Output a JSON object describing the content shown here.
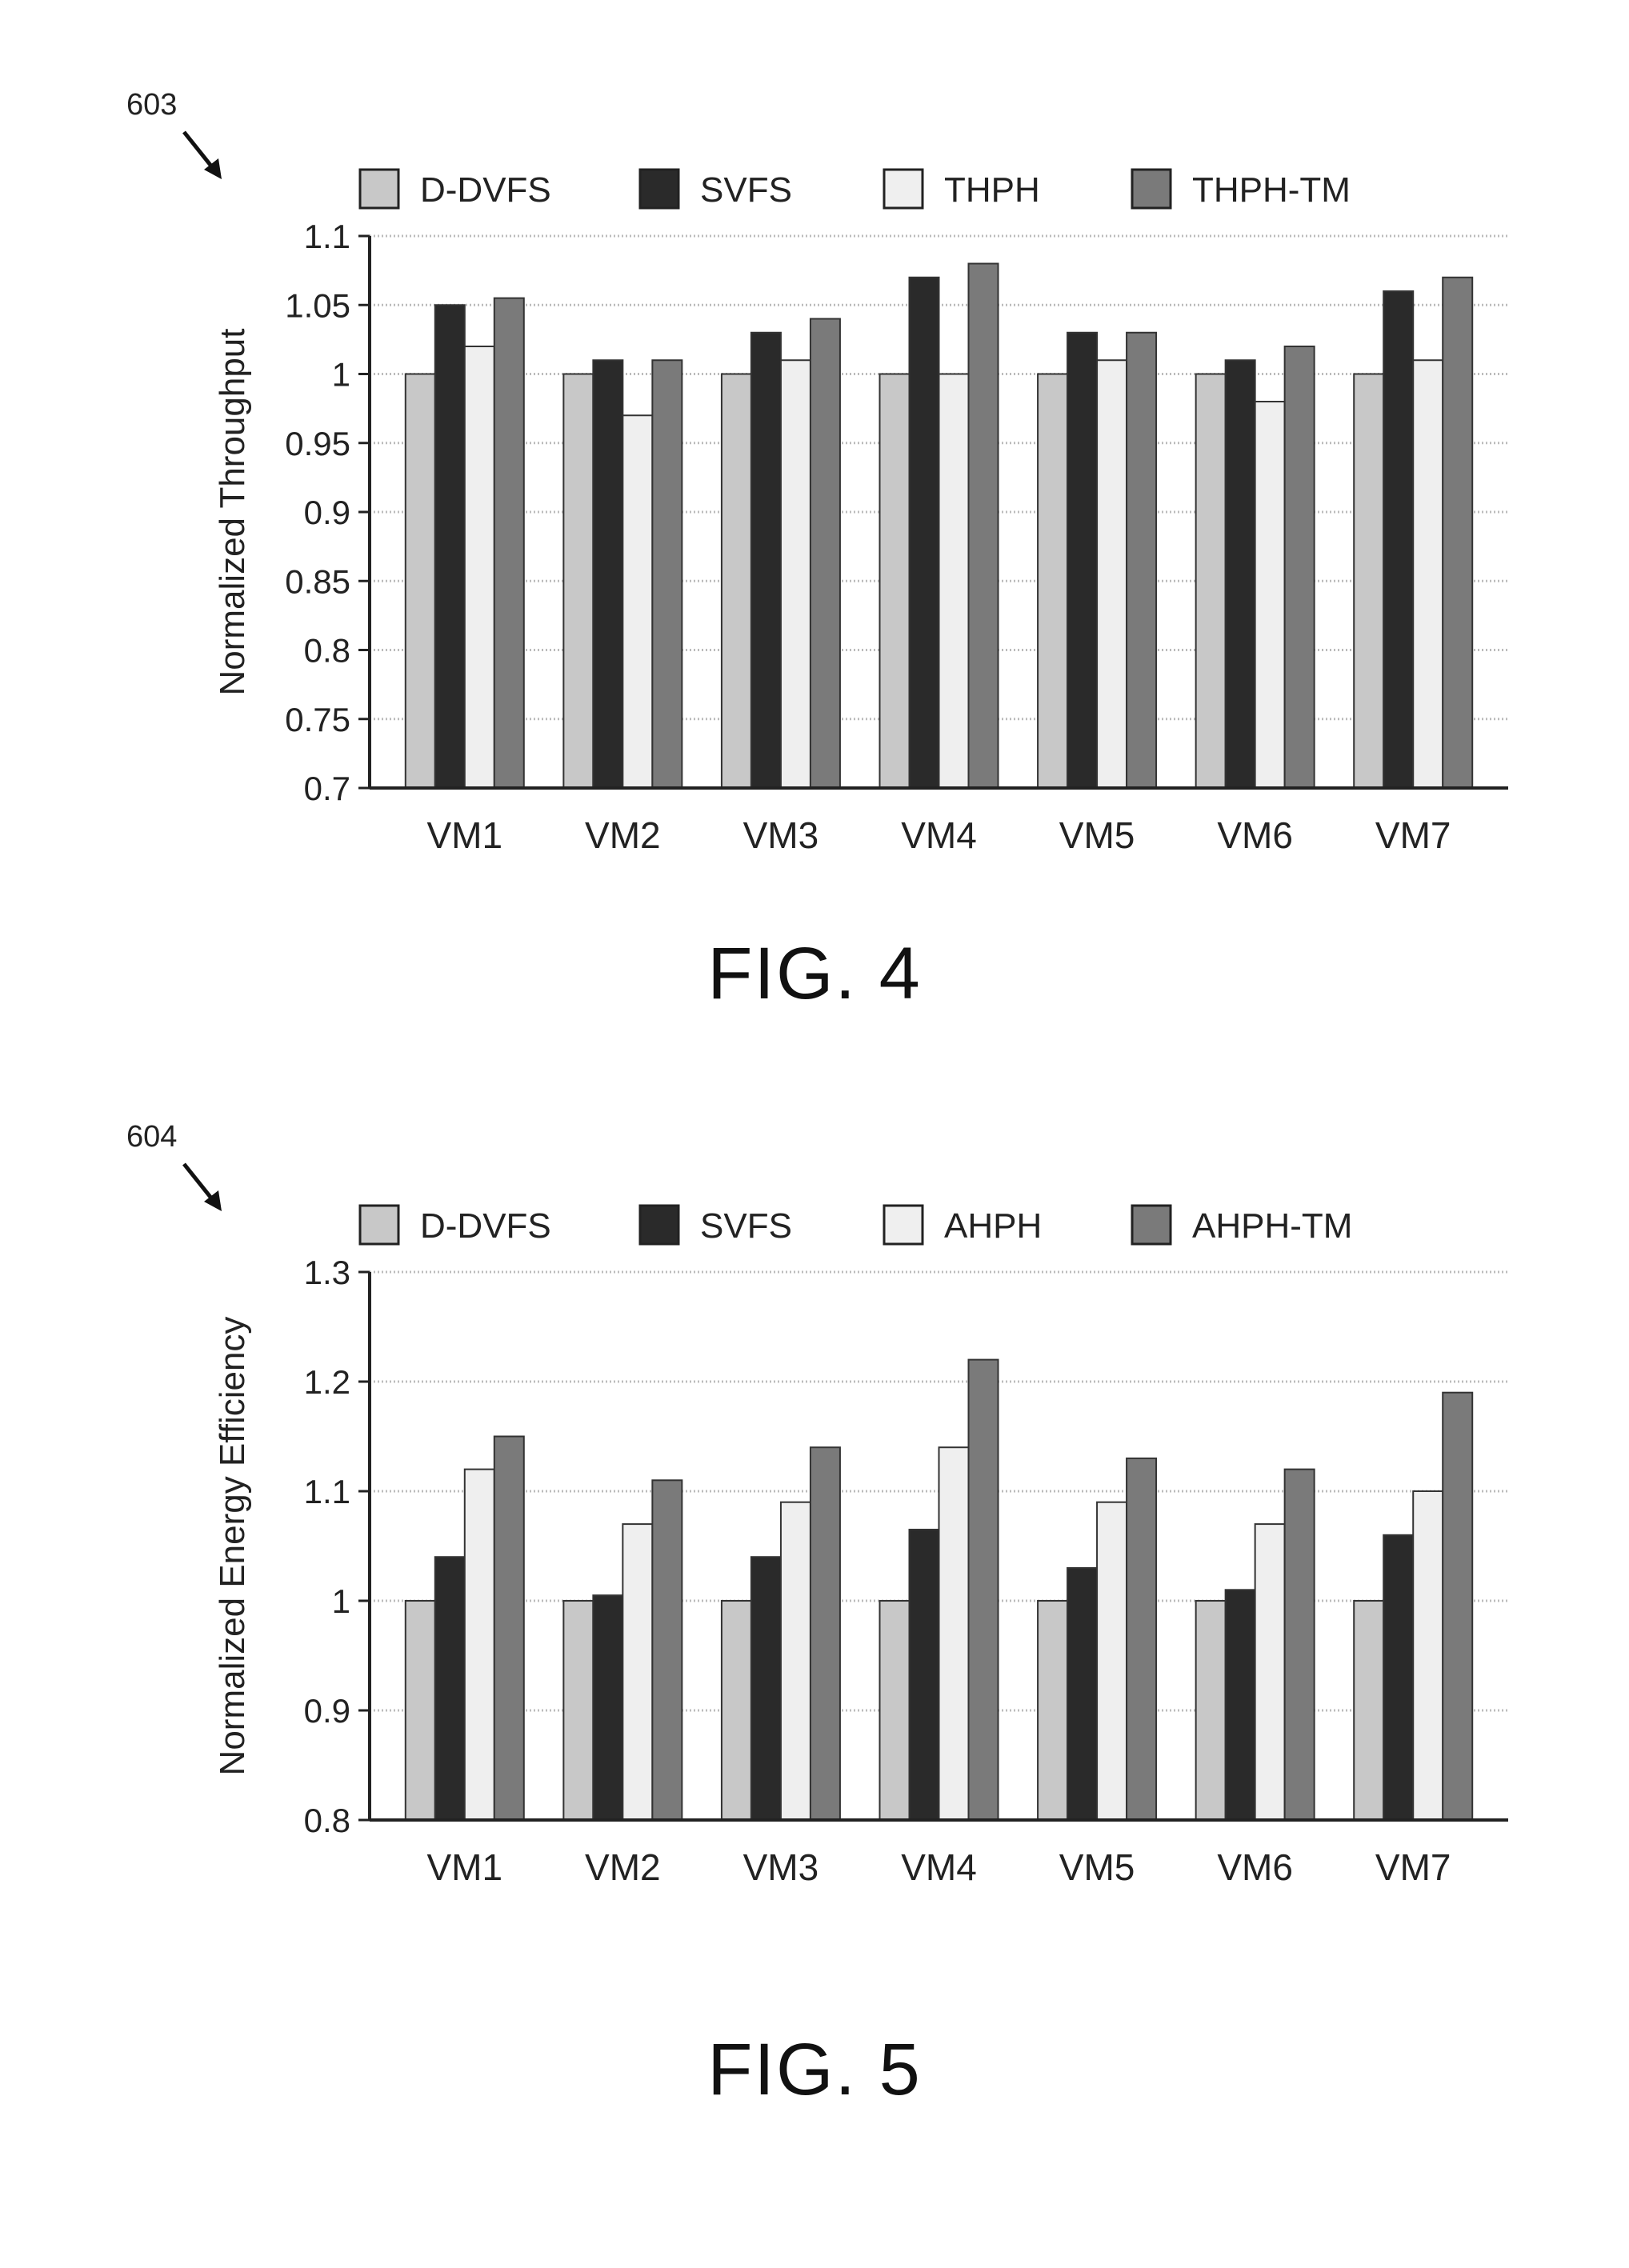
{
  "colors": {
    "series1": "#c8c8c8",
    "series2": "#2a2a2a",
    "series3": "#efefef",
    "series4": "#7a7a7a",
    "axis": "#222222",
    "grid": "#bcbcbc"
  },
  "figures": [
    {
      "ref_number": "603",
      "caption": "FIG. 4"
    },
    {
      "ref_number": "604",
      "caption": "FIG. 5"
    }
  ],
  "chart_data": [
    {
      "type": "bar",
      "title": "",
      "xlabel": "",
      "ylabel": "Normalized Throughput",
      "categories": [
        "VM1",
        "VM2",
        "VM3",
        "VM4",
        "VM5",
        "VM6",
        "VM7"
      ],
      "ylim": [
        0.7,
        1.1
      ],
      "yticks": [
        0.7,
        0.75,
        0.8,
        0.85,
        0.9,
        0.95,
        1,
        1.05,
        1.1
      ],
      "ytick_labels": [
        "0.7",
        "0.75",
        "0.8",
        "0.85",
        "0.9",
        "0.95",
        "1",
        "1.05",
        "1.1"
      ],
      "grid": true,
      "legend_position": "top",
      "series": [
        {
          "name": "D-DVFS",
          "values": [
            1.0,
            1.0,
            1.0,
            1.0,
            1.0,
            1.0,
            1.0
          ]
        },
        {
          "name": "SVFS",
          "values": [
            1.05,
            1.01,
            1.03,
            1.07,
            1.03,
            1.01,
            1.06
          ]
        },
        {
          "name": "THPH",
          "values": [
            1.02,
            0.97,
            1.01,
            1.0,
            1.01,
            0.98,
            1.01
          ]
        },
        {
          "name": "THPH-TM",
          "values": [
            1.055,
            1.01,
            1.04,
            1.08,
            1.03,
            1.02,
            1.07
          ]
        }
      ]
    },
    {
      "type": "bar",
      "title": "",
      "xlabel": "",
      "ylabel": "Normalized Energy Efficiency",
      "categories": [
        "VM1",
        "VM2",
        "VM3",
        "VM4",
        "VM5",
        "VM6",
        "VM7"
      ],
      "ylim": [
        0.8,
        1.3
      ],
      "yticks": [
        0.8,
        0.9,
        1,
        1.1,
        1.2,
        1.3
      ],
      "ytick_labels": [
        "0.8",
        "0.9",
        "1",
        "1.1",
        "1.2",
        "1.3"
      ],
      "grid": true,
      "legend_position": "top",
      "series": [
        {
          "name": "D-DVFS",
          "values": [
            1.0,
            1.0,
            1.0,
            1.0,
            1.0,
            1.0,
            1.0
          ]
        },
        {
          "name": "SVFS",
          "values": [
            1.04,
            1.005,
            1.04,
            1.065,
            1.03,
            1.01,
            1.06
          ]
        },
        {
          "name": "AHPH",
          "values": [
            1.12,
            1.07,
            1.09,
            1.14,
            1.09,
            1.07,
            1.1
          ]
        },
        {
          "name": "AHPH-TM",
          "values": [
            1.15,
            1.11,
            1.14,
            1.22,
            1.13,
            1.12,
            1.19
          ]
        }
      ]
    }
  ]
}
